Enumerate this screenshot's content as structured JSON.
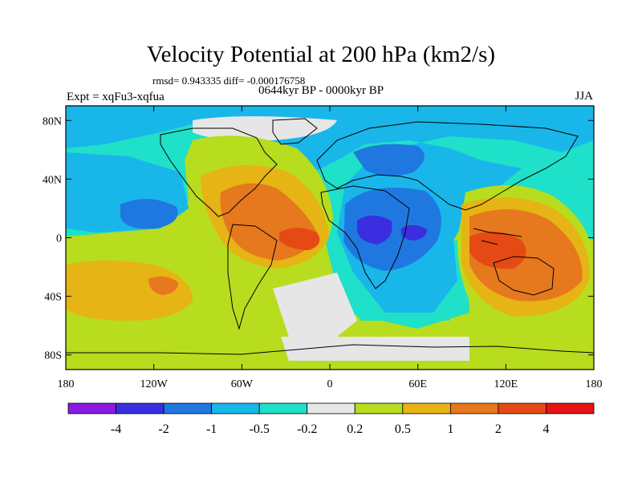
{
  "figure": {
    "title": "Velocity Potential at 200 hPa (km2/s)",
    "stats_line": "rmsd= 0.943335 diff= -0.000176758",
    "period_label": "0644kyr BP - 0000kyr BP",
    "experiment_label": "Expt = xqFu3-xqfua",
    "season_label": "JJA"
  },
  "map": {
    "lat_ticks": [
      "80N",
      "40N",
      "0",
      "40S",
      "80S"
    ],
    "lon_ticks": [
      "180",
      "120W",
      "60W",
      "0",
      "60E",
      "120E",
      "180"
    ],
    "lat_range": [
      -90,
      90
    ],
    "lon_range": [
      -180,
      180
    ]
  },
  "colorbar": {
    "labels": [
      "-4",
      "-2",
      "-1",
      "-0.5",
      "-0.2",
      "0.2",
      "0.5",
      "1",
      "2",
      "4"
    ],
    "colors": [
      "#8a1ae0",
      "#3a2ee0",
      "#1f78e0",
      "#19b6ea",
      "#1fe0c8",
      "#e6e6e6",
      "#b8dc1e",
      "#e6b414",
      "#e6781e",
      "#e64a14",
      "#e61414"
    ]
  },
  "colors": {
    "land_outline": "#000000",
    "frame": "#000000"
  }
}
